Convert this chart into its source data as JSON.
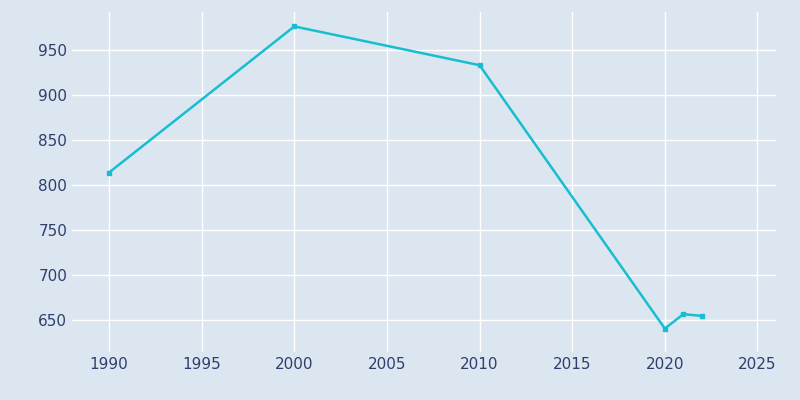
{
  "years": [
    1990,
    2000,
    2010,
    2020,
    2021,
    2022
  ],
  "population": [
    814,
    976,
    933,
    641,
    657,
    655
  ],
  "line_color": "#17becf",
  "marker_style": "s",
  "marker_size": 3,
  "line_width": 1.8,
  "bg_color": "#dce6f0",
  "fig_bg_color": "#dce6f0",
  "grid_color": "#ffffff",
  "tick_color": "#2e3f6e",
  "xlim": [
    1988,
    2026
  ],
  "ylim": [
    615,
    992
  ],
  "xticks": [
    1990,
    1995,
    2000,
    2005,
    2010,
    2015,
    2020,
    2025
  ],
  "yticks": [
    650,
    700,
    750,
    800,
    850,
    900,
    950
  ]
}
